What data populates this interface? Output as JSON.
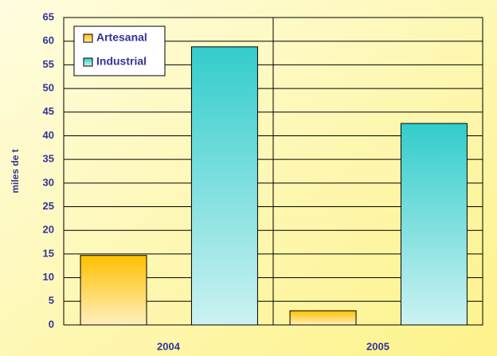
{
  "chart_data": {
    "type": "bar",
    "y_label": "miles de t",
    "categories": [
      "2004",
      "2005"
    ],
    "series": [
      {
        "name": "Artesanal",
        "color": "#ffc000",
        "values": [
          14.7,
          3.0
        ]
      },
      {
        "name": "Industrial",
        "color": "#33cccc",
        "values": [
          58.8,
          42.6
        ]
      }
    ],
    "ylim": [
      0,
      65
    ],
    "yticks": [
      0,
      5,
      10,
      15,
      20,
      25,
      30,
      35,
      40,
      45,
      50,
      55,
      60,
      65
    ],
    "grid": true
  }
}
